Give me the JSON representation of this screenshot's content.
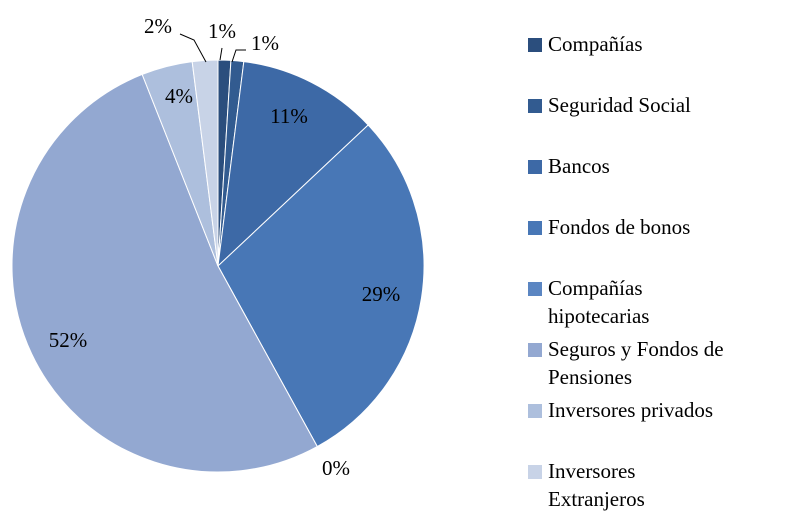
{
  "chart_data": {
    "type": "pie",
    "categories": [
      "Compañías",
      "Seguridad Social",
      "Bancos",
      "Fondos de bonos",
      "Compañías hipotecarias",
      "Seguros y Fondos de Pensiones",
      "Inversores privados",
      "Inversores Extranjeros"
    ],
    "values": [
      1,
      1,
      11,
      29,
      0,
      52,
      4,
      2
    ],
    "value_labels": [
      "1%",
      "1%",
      "11%",
      "29%",
      "0%",
      "52%",
      "4%",
      "2%"
    ],
    "colors": [
      "#2b4e7d",
      "#325b90",
      "#3d69a6",
      "#4877b6",
      "#5b86c2",
      "#93a8d1",
      "#adbfdd",
      "#c8d3e7"
    ],
    "legend": "right"
  }
}
